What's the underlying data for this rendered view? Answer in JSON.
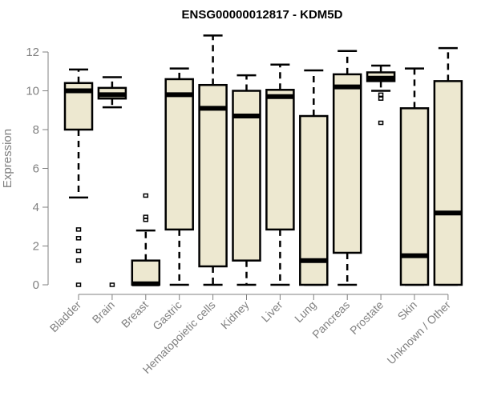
{
  "chart_data": {
    "type": "boxplot",
    "title": "ENSG00000012817 - KDM5D",
    "xlabel": "",
    "ylabel": "Expression",
    "ylim": [
      0,
      12
    ],
    "yticks": [
      0,
      2,
      4,
      6,
      8,
      10,
      12
    ],
    "grid": false,
    "box_fill": "#ede8d0",
    "line_color": "#000000",
    "categories": [
      "Bladder",
      "Brain",
      "Breast",
      "Gastric",
      "Hematopoietic cells",
      "Kidney",
      "Liver",
      "Lung",
      "Pancreas",
      "Prostate",
      "Skin",
      "Unknown / Other"
    ],
    "boxes": [
      {
        "whisker_low": 4.5,
        "q1": 8.0,
        "median": 10.0,
        "q3": 10.4,
        "whisker_high": 11.1,
        "outliers": [
          0,
          1.25,
          1.75,
          2.4,
          2.85
        ]
      },
      {
        "whisker_low": 9.15,
        "q1": 9.6,
        "median": 9.8,
        "q3": 10.15,
        "whisker_high": 10.7,
        "outliers": [
          0
        ]
      },
      {
        "whisker_low": 0,
        "q1": 0,
        "median": 0.05,
        "q3": 1.25,
        "whisker_high": 2.8,
        "outliers": [
          3.35,
          3.5,
          4.6
        ]
      },
      {
        "whisker_low": 0,
        "q1": 2.85,
        "median": 9.8,
        "q3": 10.6,
        "whisker_high": 11.15,
        "outliers": []
      },
      {
        "whisker_low": 0,
        "q1": 0.95,
        "median": 9.1,
        "q3": 10.3,
        "whisker_high": 12.85,
        "outliers": []
      },
      {
        "whisker_low": 0,
        "q1": 1.25,
        "median": 8.7,
        "q3": 10.0,
        "whisker_high": 10.8,
        "outliers": []
      },
      {
        "whisker_low": 0,
        "q1": 2.85,
        "median": 9.7,
        "q3": 10.05,
        "whisker_high": 11.35,
        "outliers": []
      },
      {
        "whisker_low": 0,
        "q1": 0,
        "median": 1.25,
        "q3": 8.7,
        "whisker_high": 11.05,
        "outliers": []
      },
      {
        "whisker_low": 0,
        "q1": 1.65,
        "median": 10.2,
        "q3": 10.85,
        "whisker_high": 12.05,
        "outliers": []
      },
      {
        "whisker_low": 10.0,
        "q1": 10.5,
        "median": 10.65,
        "q3": 10.95,
        "whisker_high": 11.3,
        "outliers": [
          8.35,
          9.6,
          9.8
        ]
      },
      {
        "whisker_low": 0,
        "q1": 0,
        "median": 1.5,
        "q3": 9.1,
        "whisker_high": 11.15,
        "outliers": []
      },
      {
        "whisker_low": 0,
        "q1": 0,
        "median": 3.7,
        "q3": 10.5,
        "whisker_high": 12.2,
        "outliers": []
      }
    ]
  }
}
